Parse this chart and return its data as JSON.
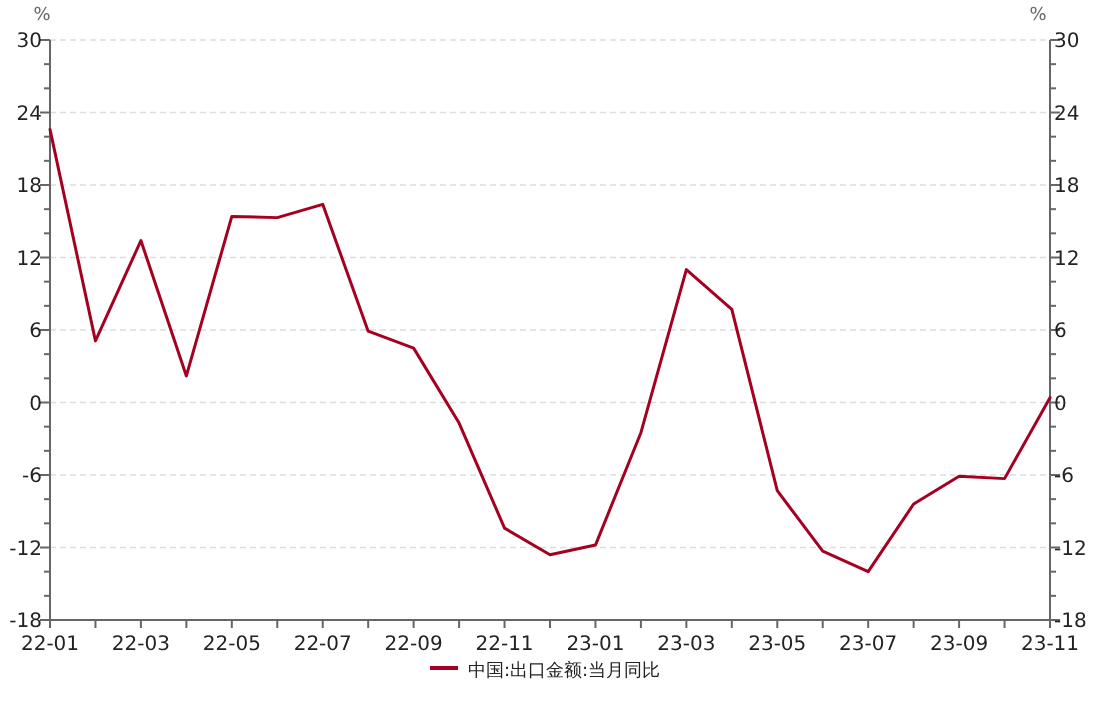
{
  "chart_data": {
    "type": "line",
    "ylabel": "%",
    "y2label": "%",
    "categories": [
      "22-01",
      null,
      "22-03",
      null,
      "22-05",
      null,
      "22-07",
      null,
      "22-09",
      null,
      "22-11",
      null,
      "23-01",
      null,
      "23-03",
      null,
      "23-05",
      null,
      "23-07",
      null,
      "23-09",
      null,
      "23-11"
    ],
    "series": [
      {
        "name": "中国:出口金额:当月同比",
        "color": "#a50021",
        "values": [
          22.6,
          5.1,
          13.4,
          2.2,
          15.4,
          15.3,
          16.4,
          5.9,
          4.5,
          -1.7,
          -10.4,
          -12.6,
          -11.8,
          -2.5,
          11.0,
          7.7,
          -7.3,
          -12.3,
          -14.0,
          -8.4,
          -6.1,
          -6.3,
          0.4
        ]
      }
    ],
    "ylim": [
      -18,
      30
    ],
    "yticks": [
      -18,
      -12,
      -6,
      0,
      6,
      12,
      18,
      24,
      30
    ],
    "y2lim": [
      -18,
      30
    ],
    "y2ticks": [
      -18,
      -12,
      -6,
      0,
      6,
      12,
      18,
      24,
      30
    ],
    "grid": "y",
    "legend": "bottom",
    "marker": "none",
    "line_style": "solid"
  }
}
